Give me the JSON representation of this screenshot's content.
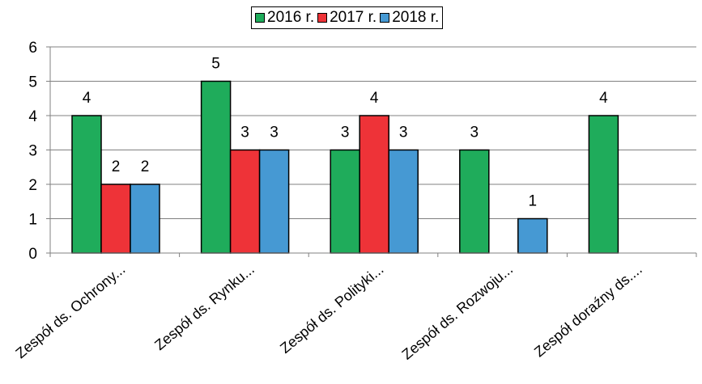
{
  "chart_data": {
    "type": "bar",
    "title": "",
    "xlabel": "",
    "ylabel": "",
    "ylim": [
      0,
      6
    ],
    "yticks": [
      0,
      1,
      2,
      3,
      4,
      5,
      6
    ],
    "grid": true,
    "legend_position": "top-center",
    "categories": [
      "Zespół ds. Ochrony...",
      "Zespół ds. Rynku...",
      "Zespół ds. Polityki...",
      "Zespół ds. Rozwoju...",
      "Zespół doraźny ds...."
    ],
    "series": [
      {
        "name": "2016 r.",
        "color": "#1fac5b",
        "values": [
          4,
          5,
          3,
          3,
          4
        ]
      },
      {
        "name": "2017 r.",
        "color": "#ee3338",
        "values": [
          2,
          3,
          4,
          null,
          null
        ]
      },
      {
        "name": "2018 r.",
        "color": "#4699d3",
        "values": [
          2,
          3,
          3,
          1,
          null
        ]
      }
    ]
  }
}
